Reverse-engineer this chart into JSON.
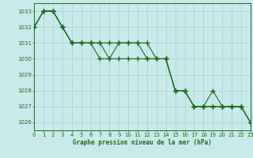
{
  "title": "Graphe pression niveau de la mer (hPa)",
  "bg_color": "#c8eaea",
  "grid_color": "#b0d8d8",
  "line_color": "#1a6b1a",
  "marker_color": "#1a6b1a",
  "xlim": [
    0,
    23
  ],
  "ylim": [
    1025.5,
    1033.5
  ],
  "yticks": [
    1026,
    1027,
    1028,
    1029,
    1030,
    1031,
    1032,
    1033
  ],
  "xticks": [
    0,
    1,
    2,
    3,
    4,
    5,
    6,
    7,
    8,
    9,
    10,
    11,
    12,
    13,
    14,
    15,
    16,
    17,
    18,
    19,
    20,
    21,
    22,
    23
  ],
  "series": [
    [
      1032.0,
      1033.0,
      1033.0,
      1032.0,
      1031.0,
      1031.0,
      1031.0,
      1031.0,
      1031.0,
      1031.0,
      1031.0,
      1031.0,
      1031.0,
      1030.0,
      1030.0,
      1028.0,
      1028.0,
      1027.0,
      1027.0,
      1028.0,
      1027.0,
      1027.0,
      1027.0,
      1026.0
    ],
    [
      1032.0,
      1033.0,
      1033.0,
      1032.0,
      1031.0,
      1031.0,
      1031.0,
      1031.0,
      1030.0,
      1031.0,
      1031.0,
      1031.0,
      1030.0,
      1030.0,
      1030.0,
      1028.0,
      1028.0,
      1027.0,
      1027.0,
      1027.0,
      1027.0,
      1027.0,
      1027.0,
      1026.0
    ],
    [
      1032.0,
      1033.0,
      1033.0,
      1032.0,
      1031.0,
      1031.0,
      1031.0,
      1030.0,
      1030.0,
      1030.0,
      1030.0,
      1030.0,
      1030.0,
      1030.0,
      1030.0,
      1028.0,
      1028.0,
      1027.0,
      1027.0,
      1027.0,
      1027.0,
      1027.0,
      1027.0,
      1026.0
    ]
  ]
}
